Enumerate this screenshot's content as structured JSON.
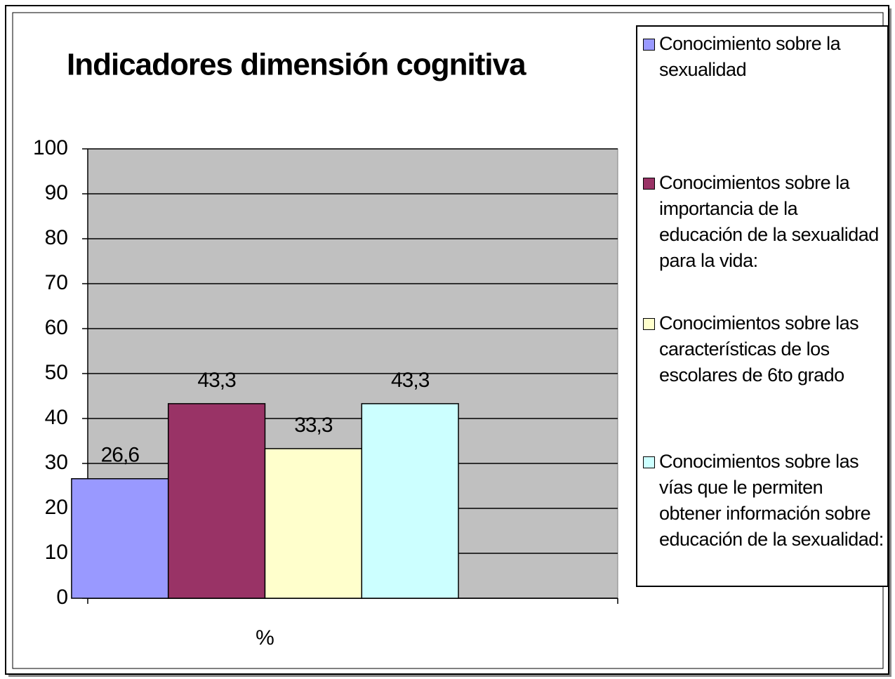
{
  "chart_data": {
    "type": "bar",
    "title": "Indicadores  dimensión cognitiva",
    "categories": [
      "%"
    ],
    "series": [
      {
        "name": "Conocimiento sobre la sexualidad",
        "color": "#9999ff",
        "values": [
          26.6
        ],
        "value_labels": [
          "26,6"
        ]
      },
      {
        "name": "Conocimientos sobre la importancia de la educación de la sexualidad para la vida:",
        "color": "#993366",
        "values": [
          43.3
        ],
        "value_labels": [
          "43,3"
        ]
      },
      {
        "name": "Conocimientos sobre las características de los escolares de 6to grado",
        "color": "#ffffcc",
        "values": [
          33.3
        ],
        "value_labels": [
          "33,3"
        ]
      },
      {
        "name": "Conocimientos sobre las vías que le permiten obtener información sobre educación de la sexualidad:",
        "color": "#ccffff",
        "values": [
          43.3
        ],
        "value_labels": [
          "43,3"
        ]
      }
    ],
    "ylim": [
      0,
      100
    ],
    "yticks": [
      0,
      10,
      20,
      30,
      40,
      50,
      60,
      70,
      80,
      90,
      100
    ],
    "grid": true,
    "legend": "right"
  }
}
